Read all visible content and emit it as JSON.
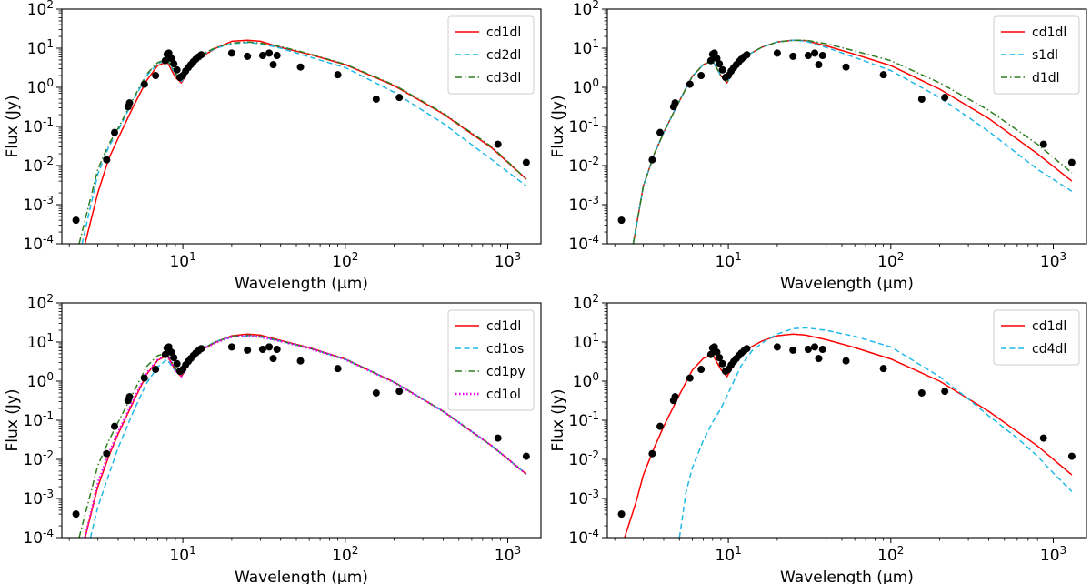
{
  "chart_data": [
    {
      "type": "line",
      "xlabel": "Wavelength (μm)",
      "ylabel": "Flux (Jy)",
      "xscale": "log",
      "yscale": "log",
      "xlim": [
        1.8,
        1600
      ],
      "ylim": [
        0.0001,
        100
      ],
      "legend_position": "top-right",
      "series": [
        {
          "name": "cd1dl",
          "color": "#ff0000",
          "dash": "solid",
          "x": [
            2.5,
            3,
            3.5,
            4,
            5,
            6,
            7,
            8,
            9,
            9.8,
            11,
            13,
            16,
            20,
            25,
            30,
            40,
            60,
            100,
            200,
            400,
            800,
            1300
          ],
          "y": [
            0.0001,
            0.002,
            0.015,
            0.05,
            0.35,
            1.5,
            3.6,
            4.5,
            1.8,
            1.3,
            3,
            6,
            10,
            15,
            16,
            15,
            10.5,
            7,
            3.8,
            1.1,
            0.21,
            0.028,
            0.0045
          ]
        },
        {
          "name": "cd2dl",
          "color": "#1fb8e8",
          "dash": "dashed",
          "x": [
            2.4,
            3,
            3.5,
            4,
            5,
            6,
            7,
            8,
            9,
            9.8,
            11,
            13,
            16,
            20,
            25,
            30,
            40,
            60,
            100,
            200,
            400,
            800,
            1300
          ],
          "y": [
            0.0001,
            0.006,
            0.03,
            0.08,
            0.5,
            2,
            4,
            5,
            2.2,
            1.4,
            3,
            6.5,
            10,
            13,
            14,
            13,
            10,
            6,
            3.2,
            0.75,
            0.12,
            0.014,
            0.003
          ]
        },
        {
          "name": "cd3dl",
          "color": "#2e7d1f",
          "dash": "dashdot",
          "x": [
            2.3,
            3,
            3.5,
            4,
            5,
            6,
            7,
            8,
            9,
            9.8,
            11,
            13,
            16,
            20,
            25,
            30,
            40,
            60,
            100,
            200,
            400,
            800,
            1300
          ],
          "y": [
            0.0001,
            0.008,
            0.035,
            0.09,
            0.55,
            2.2,
            4.3,
            5.3,
            2.3,
            1.5,
            3.2,
            6.8,
            10.5,
            13.5,
            14.5,
            13.5,
            11,
            7.2,
            3.9,
            1.15,
            0.22,
            0.03,
            0.0045
          ]
        }
      ],
      "observations": {
        "x": [
          2.2,
          3.4,
          3.8,
          4.6,
          4.7,
          5.8,
          6.8,
          7.8,
          8.0,
          8.2,
          8.5,
          8.8,
          9.2,
          9.6,
          10.0,
          10.4,
          10.8,
          11.2,
          11.6,
          12.0,
          12.5,
          13.0,
          20,
          25,
          31,
          34,
          36,
          38,
          53,
          90,
          155,
          215,
          870,
          1300
        ],
        "y": [
          0.0004,
          0.014,
          0.07,
          0.32,
          0.4,
          1.2,
          2.0,
          4.8,
          7.0,
          7.5,
          5.5,
          4.0,
          2.8,
          1.8,
          2.0,
          2.6,
          3.2,
          3.8,
          4.5,
          5.2,
          6.0,
          6.8,
          7.5,
          6.2,
          6.5,
          7.5,
          3.8,
          6.5,
          3.3,
          2.1,
          0.5,
          0.55,
          0.035,
          0.012
        ]
      }
    },
    {
      "type": "line",
      "xlabel": "Wavelength (μm)",
      "ylabel": "Flux (Jy)",
      "xscale": "log",
      "yscale": "log",
      "xlim": [
        1.8,
        1600
      ],
      "ylim": [
        0.0001,
        100
      ],
      "legend_position": "top-right",
      "series": [
        {
          "name": "cd1dl",
          "color": "#ff0000",
          "dash": "solid",
          "x": [
            2.6,
            3,
            3.5,
            4,
            5,
            6,
            7,
            8,
            9,
            9.8,
            11,
            13,
            16,
            20,
            25,
            30,
            40,
            60,
            100,
            200,
            400,
            800,
            1300
          ],
          "y": [
            0.0001,
            0.003,
            0.02,
            0.07,
            0.45,
            1.9,
            3.8,
            4.8,
            2,
            1.3,
            3,
            6.5,
            10.5,
            14.5,
            16,
            15.5,
            11.5,
            7,
            3.6,
            0.9,
            0.16,
            0.02,
            0.004
          ]
        },
        {
          "name": "s1dl",
          "color": "#1fb8e8",
          "dash": "dashed",
          "x": [
            2.6,
            3,
            3.5,
            4,
            5,
            6,
            7,
            8,
            9,
            9.8,
            11,
            13,
            16,
            20,
            25,
            30,
            40,
            60,
            100,
            200,
            400,
            800,
            1300
          ],
          "y": [
            0.0001,
            0.003,
            0.02,
            0.07,
            0.45,
            1.9,
            3.8,
            4.8,
            2,
            1.3,
            3,
            6.5,
            10.5,
            14.5,
            16,
            15,
            10.5,
            5.8,
            2.7,
            0.55,
            0.075,
            0.008,
            0.0022
          ]
        },
        {
          "name": "d1dl",
          "color": "#2e7d1f",
          "dash": "dashdot",
          "x": [
            2.6,
            3,
            3.5,
            4,
            5,
            6,
            7,
            8,
            9,
            9.8,
            11,
            13,
            16,
            20,
            25,
            30,
            40,
            60,
            100,
            200,
            400,
            800,
            1300
          ],
          "y": [
            0.0001,
            0.003,
            0.02,
            0.07,
            0.45,
            1.9,
            3.8,
            4.8,
            2,
            1.3,
            3,
            6.5,
            10.5,
            14.5,
            16,
            16,
            13,
            8.5,
            4.8,
            1.3,
            0.26,
            0.035,
            0.0065
          ]
        }
      ],
      "observations": {
        "x": [
          2.2,
          3.4,
          3.8,
          4.6,
          4.7,
          5.8,
          6.8,
          7.8,
          8.0,
          8.2,
          8.5,
          8.8,
          9.2,
          9.6,
          10.0,
          10.4,
          10.8,
          11.2,
          11.6,
          12.0,
          12.5,
          13.0,
          20,
          25,
          31,
          34,
          36,
          38,
          53,
          90,
          155,
          215,
          870,
          1300
        ],
        "y": [
          0.0004,
          0.014,
          0.07,
          0.32,
          0.4,
          1.2,
          2.0,
          4.8,
          7.0,
          7.5,
          5.5,
          4.0,
          2.8,
          1.8,
          2.0,
          2.6,
          3.2,
          3.8,
          4.5,
          5.2,
          6.0,
          6.8,
          7.5,
          6.2,
          6.5,
          7.5,
          3.8,
          6.5,
          3.3,
          2.1,
          0.5,
          0.55,
          0.035,
          0.012
        ]
      }
    },
    {
      "type": "line",
      "xlabel": "Wavelength (μm)",
      "ylabel": "Flux (Jy)",
      "xscale": "log",
      "yscale": "log",
      "xlim": [
        1.8,
        1600
      ],
      "ylim": [
        0.0001,
        100
      ],
      "legend_position": "top-right",
      "series": [
        {
          "name": "cd1dl",
          "color": "#ff0000",
          "dash": "solid",
          "x": [
            2.5,
            3,
            3.5,
            4,
            5,
            6,
            7,
            8,
            9,
            9.8,
            11,
            13,
            16,
            20,
            25,
            30,
            40,
            60,
            100,
            200,
            400,
            800,
            1300
          ],
          "y": [
            0.0001,
            0.002,
            0.012,
            0.045,
            0.32,
            1.5,
            3.4,
            4.6,
            1.9,
            1.3,
            3,
            6.2,
            10,
            14.5,
            16,
            15,
            11,
            7.2,
            3.7,
            0.95,
            0.17,
            0.022,
            0.0042
          ]
        },
        {
          "name": "cd1os",
          "color": "#1fb8e8",
          "dash": "dashed",
          "x": [
            2.7,
            3,
            3.5,
            4,
            5,
            6,
            7,
            8,
            9,
            9.8,
            11,
            13,
            16,
            20,
            25,
            30,
            40,
            60,
            100,
            200,
            400,
            800,
            1300
          ],
          "y": [
            0.0001,
            0.0006,
            0.004,
            0.02,
            0.18,
            0.9,
            2.3,
            3.6,
            1.8,
            1.5,
            3.2,
            6.5,
            10.5,
            13.5,
            14,
            13.5,
            10.5,
            7,
            3.6,
            0.95,
            0.17,
            0.022,
            0.0042
          ]
        },
        {
          "name": "cd1py",
          "color": "#2e7d1f",
          "dash": "dashdot",
          "x": [
            2.3,
            3,
            3.5,
            4,
            5,
            6,
            7,
            8,
            9,
            9.8,
            11,
            13,
            16,
            20,
            25,
            30,
            40,
            60,
            100,
            200,
            400,
            800,
            1300
          ],
          "y": [
            0.0001,
            0.007,
            0.03,
            0.09,
            0.55,
            2.4,
            4.5,
            5.2,
            2.1,
            1.4,
            3.1,
            6.5,
            10.2,
            14,
            15,
            14.2,
            10.8,
            7,
            3.7,
            0.95,
            0.17,
            0.022,
            0.0042
          ]
        },
        {
          "name": "cd1ol",
          "color": "#ee00ee",
          "dash": "dotted",
          "x": [
            2.5,
            3,
            3.5,
            4,
            5,
            6,
            7,
            8,
            9,
            9.8,
            11,
            13,
            16,
            20,
            25,
            30,
            40,
            60,
            100,
            200,
            400,
            800,
            1300
          ],
          "y": [
            0.0001,
            0.0025,
            0.014,
            0.05,
            0.35,
            1.6,
            3.5,
            4.6,
            1.9,
            1.35,
            3,
            6.2,
            9.8,
            13.5,
            14.5,
            13.5,
            10.5,
            6.9,
            3.6,
            0.93,
            0.17,
            0.022,
            0.0042
          ]
        }
      ],
      "observations": {
        "x": [
          2.2,
          3.4,
          3.8,
          4.6,
          4.7,
          5.8,
          6.8,
          7.8,
          8.0,
          8.2,
          8.5,
          8.8,
          9.2,
          9.6,
          10.0,
          10.4,
          10.8,
          11.2,
          11.6,
          12.0,
          12.5,
          13.0,
          20,
          25,
          31,
          34,
          36,
          38,
          53,
          90,
          155,
          215,
          870,
          1300
        ],
        "y": [
          0.0004,
          0.014,
          0.07,
          0.32,
          0.4,
          1.2,
          2.0,
          4.8,
          7.0,
          7.5,
          5.5,
          4.0,
          2.8,
          1.8,
          2.0,
          2.6,
          3.2,
          3.8,
          4.5,
          5.2,
          6.0,
          6.8,
          7.5,
          6.2,
          6.5,
          7.5,
          3.8,
          6.5,
          3.3,
          2.1,
          0.5,
          0.55,
          0.035,
          0.012
        ]
      }
    },
    {
      "type": "line",
      "xlabel": "Wavelength (μm)",
      "ylabel": "Flux (Jy)",
      "xscale": "log",
      "yscale": "log",
      "xlim": [
        1.8,
        1600
      ],
      "ylim": [
        0.0001,
        100
      ],
      "legend_position": "top-right",
      "series": [
        {
          "name": "cd1dl",
          "color": "#ff0000",
          "dash": "solid",
          "x": [
            2.3,
            2.7,
            3,
            3.5,
            4,
            5,
            6,
            7,
            8,
            9,
            9.8,
            11,
            13,
            16,
            20,
            25,
            30,
            40,
            60,
            100,
            200,
            400,
            800,
            1300
          ],
          "y": [
            0.0001,
            0.0008,
            0.004,
            0.02,
            0.07,
            0.45,
            1.9,
            3.8,
            4.8,
            2,
            1.3,
            3,
            6.5,
            10.5,
            14.5,
            16,
            15,
            11.5,
            7.2,
            3.7,
            1.0,
            0.17,
            0.022,
            0.004
          ]
        },
        {
          "name": "cd4dl",
          "color": "#1fb8e8",
          "dash": "dashed",
          "x": [
            5.0,
            5.5,
            6,
            7,
            8,
            9,
            10,
            12,
            14,
            17,
            20,
            25,
            30,
            40,
            60,
            100,
            200,
            300,
            400,
            600,
            800,
            1000,
            1300
          ],
          "y": [
            0.0001,
            0.0015,
            0.006,
            0.03,
            0.09,
            0.2,
            0.5,
            2.5,
            6,
            11,
            16,
            22,
            23,
            20,
            14,
            7.5,
            1.3,
            0.35,
            0.13,
            0.035,
            0.012,
            0.0045,
            0.0015
          ]
        }
      ],
      "observations": {
        "x": [
          2.2,
          3.4,
          3.8,
          4.6,
          4.7,
          5.8,
          6.8,
          7.8,
          8.0,
          8.2,
          8.5,
          8.8,
          9.2,
          9.6,
          10.0,
          10.4,
          10.8,
          11.2,
          11.6,
          12.0,
          12.5,
          13.0,
          20,
          25,
          31,
          34,
          36,
          38,
          53,
          90,
          155,
          215,
          870,
          1300
        ],
        "y": [
          0.0004,
          0.014,
          0.07,
          0.32,
          0.4,
          1.2,
          2.0,
          4.8,
          7.0,
          7.5,
          5.5,
          4.0,
          2.8,
          1.8,
          2.0,
          2.6,
          3.2,
          3.8,
          4.5,
          5.2,
          6.0,
          6.8,
          7.5,
          6.2,
          6.5,
          7.5,
          3.8,
          6.5,
          3.3,
          2.1,
          0.5,
          0.55,
          0.035,
          0.012
        ]
      }
    }
  ]
}
